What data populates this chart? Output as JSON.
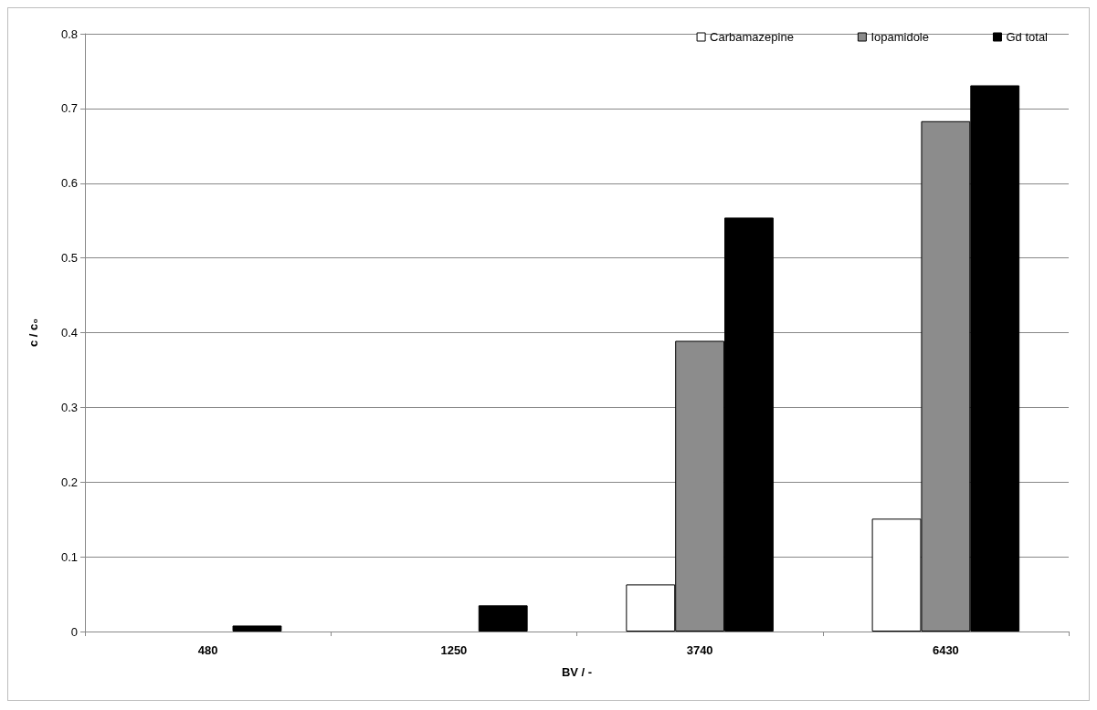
{
  "chart_data": {
    "type": "bar",
    "xlabel": "BV / -",
    "ylabel": "c / c₀",
    "categories": [
      "480",
      "1250",
      "3740",
      "6430"
    ],
    "series": [
      {
        "name": "Carbamazepine",
        "color": "#ffffff",
        "values": [
          null,
          null,
          0.063,
          0.151
        ]
      },
      {
        "name": "Iopamidole",
        "color": "#8c8c8c",
        "values": [
          null,
          null,
          0.389,
          0.683
        ]
      },
      {
        "name": "Gd total",
        "color": "#000000",
        "values": [
          0.008,
          0.035,
          0.554,
          0.731
        ]
      }
    ],
    "ylim": [
      0,
      0.8
    ],
    "yticks": [
      0,
      0.1,
      0.2,
      0.3,
      0.4,
      0.5,
      0.6,
      0.7,
      0.8
    ],
    "grid": "y",
    "legend": "top right"
  }
}
